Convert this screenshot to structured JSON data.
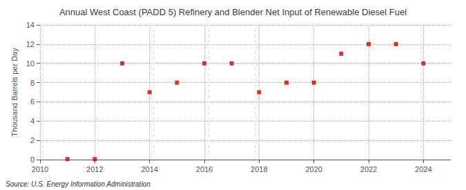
{
  "chart_data": {
    "type": "scatter",
    "title": "Annual West Coast (PADD 5) Refinery and Blender Net Input of Renewable Diesel Fuel",
    "ylabel": "Thousand Barrels per Day",
    "annotations": [
      "Source: U.S. Energy Information Administration"
    ],
    "x": [
      2011,
      2012,
      2013,
      2014,
      2015,
      2016,
      2017,
      2018,
      2019,
      2020,
      2021,
      2022,
      2023,
      2024
    ],
    "values": [
      0.05,
      0.05,
      10.0,
      7.0,
      8.0,
      10.0,
      10.0,
      7.0,
      8.0,
      8.0,
      11.0,
      12.0,
      12.0,
      10.0
    ],
    "color": "#cc0000",
    "marker": "square",
    "xlim": [
      2010,
      2025
    ],
    "ylim": [
      0,
      14
    ],
    "xticks": [
      2010,
      2012,
      2014,
      2016,
      2018,
      2020,
      2022,
      2024
    ],
    "yticks": [
      0,
      2,
      4,
      6,
      8,
      10,
      12,
      14
    ],
    "grid": true
  }
}
